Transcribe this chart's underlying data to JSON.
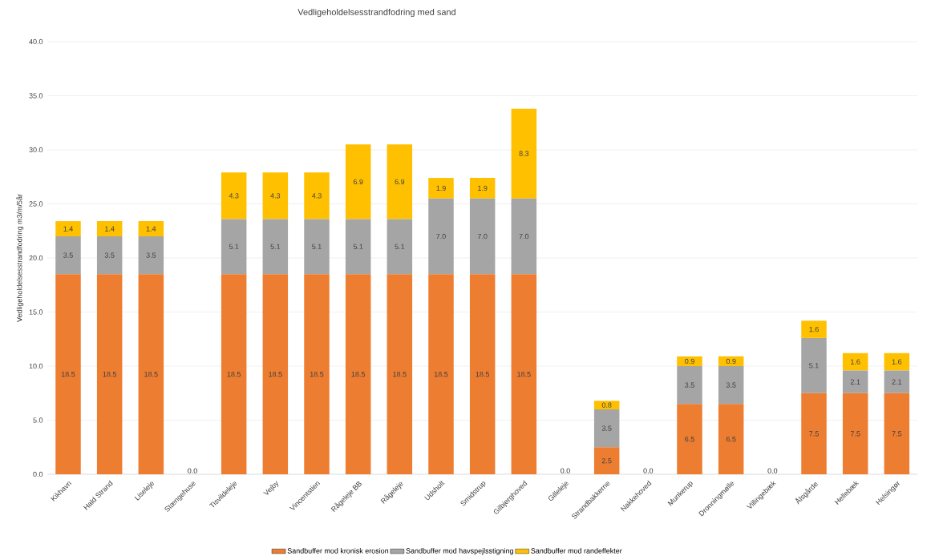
{
  "chart_data": {
    "type": "bar",
    "stacked": true,
    "title": "Vedligeholdelsesstrandfodring med sand",
    "ylabel": "Vedligeholdelsesstrandfodring m3/m/5år",
    "categories": [
      "Kikhavn",
      "Hald Strand",
      "Liseleje",
      "Stængehuse",
      "Tisvildeleje",
      "Vejby",
      "Vincentstien",
      "Rågeleje BB",
      "Rågeleje",
      "Udsholt",
      "Smidstrup",
      "Gilbjerghoved",
      "Gilleleje",
      "Strandbakkerne",
      "Nakkehoved",
      "Munkerup",
      "Dronningmølle",
      "Villingebæk",
      "Ålsgårde",
      "Hellebæk",
      "Helsingør"
    ],
    "series": [
      {
        "name": "Sandbuffer mod kronisk erosion",
        "color": "#ed7d31",
        "values": [
          18.5,
          18.5,
          18.5,
          0,
          18.5,
          18.5,
          18.5,
          18.5,
          18.5,
          18.5,
          18.5,
          18.5,
          0,
          2.5,
          0,
          6.5,
          6.5,
          0,
          7.5,
          7.5,
          7.5
        ],
        "value_labels": [
          "18.5",
          "18.5",
          "18.5",
          null,
          "18.5",
          "18.5",
          "18.5",
          "18.5",
          "18.5",
          "18.5",
          "18.5",
          "18.5",
          null,
          "2.5",
          null,
          "6.5",
          "6.5",
          null,
          "7.5",
          "7.5",
          "7.5"
        ]
      },
      {
        "name": "Sandbuffer mod havspejlsstigning",
        "color": "#a5a5a5",
        "values": [
          3.5,
          3.5,
          3.5,
          0,
          5.1,
          5.1,
          5.1,
          5.1,
          5.1,
          7.0,
          7.0,
          7.0,
          0,
          3.5,
          0,
          3.5,
          3.5,
          0,
          5.1,
          2.1,
          2.1
        ],
        "value_labels": [
          "3.5",
          "3.5",
          "3.5",
          null,
          "5.1",
          "5.1",
          "5.1",
          "5.1",
          "5.1",
          "7.0",
          "7.0",
          "7.0",
          null,
          "3.5",
          null,
          "3.5",
          "3.5",
          null,
          "5.1",
          "2.1",
          "2.1"
        ]
      },
      {
        "name": "Sandbuffer mod randeffekter",
        "color": "#ffc000",
        "values": [
          1.4,
          1.4,
          1.4,
          0,
          4.3,
          4.3,
          4.3,
          6.9,
          6.9,
          1.9,
          1.9,
          8.3,
          0,
          0.8,
          0,
          0.9,
          0.9,
          0,
          1.6,
          1.6,
          1.6
        ],
        "value_labels": [
          "1.4",
          "1.4",
          "1.4",
          "0.0",
          "4.3",
          "4.3",
          "4.3",
          "6.9",
          "6.9",
          "1.9",
          "1.9",
          "8.3",
          "0.0",
          "0.8",
          "0.0",
          "0.9",
          "0.9",
          "0.0",
          "1.6",
          "1.6",
          "1.6"
        ]
      }
    ],
    "ylim": [
      0,
      40
    ],
    "yticks": [
      {
        "value": 0,
        "label": "0.0"
      },
      {
        "value": 5,
        "label": "5.0"
      },
      {
        "value": 10,
        "label": "10.0"
      },
      {
        "value": 15,
        "label": "15.0"
      },
      {
        "value": 20,
        "label": "20.0"
      },
      {
        "value": 25,
        "label": "25.0"
      },
      {
        "value": 30,
        "label": "30.0"
      },
      {
        "value": 35,
        "label": "35.0"
      },
      {
        "value": 40,
        "label": "40.0"
      }
    ],
    "grid": "y",
    "legend": "bottom"
  }
}
